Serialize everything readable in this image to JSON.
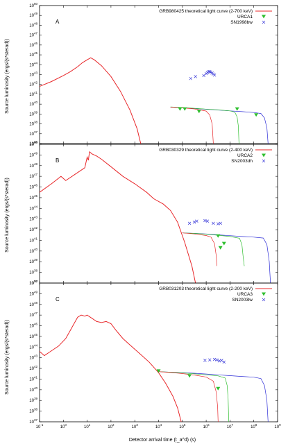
{
  "figure": {
    "xlabel": "Detector arrival time (t_a^d) (s)",
    "x_ticks": [
      "10^-1",
      "10^0",
      "10^1",
      "10^2",
      "10^3",
      "10^4",
      "10^5",
      "10^6",
      "10^7",
      "10^8",
      "10^9"
    ]
  },
  "colors": {
    "grb": "#e8272a",
    "urca_v1": "#2b2bd6",
    "urca_v2": "#2fbf2f",
    "marker_triangle": "#2fbf2f",
    "marker_cross": "#3b3bd9",
    "axis": "#000000"
  },
  "chart_data": [
    {
      "type": "line",
      "panel_letter": "A",
      "ylabel": "Source luminosity (ergs/(s*sterad))",
      "xlim_log10": [
        -1,
        9
      ],
      "ylim_log10": [
        36,
        50
      ],
      "y_ticks": [
        "10^36",
        "10^37",
        "10^38",
        "10^39",
        "10^40",
        "10^41",
        "10^42",
        "10^43",
        "10^44",
        "10^45",
        "10^46",
        "10^47",
        "10^48",
        "10^49",
        "10^50"
      ],
      "legend": {
        "grb": "GRB980425 theoretical light curve (2-700 keV)",
        "urca": "URCA1",
        "sn": "SN1998bw"
      },
      "series": [
        {
          "name": "GRB980425 theoretical light curve (2-700 keV)",
          "role": "grb",
          "points": [
            [
              -1,
              41.8
            ],
            [
              -0.5,
              42.3
            ],
            [
              0,
              42.9
            ],
            [
              0.3,
              43.3
            ],
            [
              0.6,
              43.8
            ],
            [
              0.8,
              44.2
            ],
            [
              1,
              44.5
            ],
            [
              1.15,
              44.7
            ],
            [
              1.3,
              44.5
            ],
            [
              1.6,
              43.9
            ],
            [
              2,
              42.8
            ],
            [
              2.4,
              41.3
            ],
            [
              2.8,
              39.4
            ],
            [
              3.1,
              37.5
            ],
            [
              3.25,
              36
            ]
          ]
        },
        {
          "role": "urca_blue",
          "points": [
            [
              4.5,
              39.7
            ],
            [
              5,
              39.64
            ],
            [
              5.5,
              39.56
            ],
            [
              6,
              39.48
            ],
            [
              6.5,
              39.4
            ],
            [
              7,
              39.32
            ],
            [
              7.5,
              39.24
            ],
            [
              8,
              39.15
            ],
            [
              8.3,
              39.05
            ],
            [
              8.45,
              38.6
            ],
            [
              8.55,
              37.6
            ],
            [
              8.6,
              36
            ]
          ]
        },
        {
          "role": "urca_green",
          "points": [
            [
              4.5,
              39.72
            ],
            [
              5,
              39.66
            ],
            [
              5.5,
              39.58
            ],
            [
              6,
              39.5
            ],
            [
              6.5,
              39.42
            ],
            [
              7,
              39.32
            ],
            [
              7.2,
              39.2
            ],
            [
              7.3,
              38.7
            ],
            [
              7.35,
              37.8
            ],
            [
              7.38,
              36
            ]
          ]
        },
        {
          "role": "urca_red",
          "points": [
            [
              4.5,
              39.7
            ],
            [
              5,
              39.62
            ],
            [
              5.5,
              39.52
            ],
            [
              6,
              39.3
            ],
            [
              6.15,
              38.9
            ],
            [
              6.25,
              38
            ],
            [
              6.3,
              36
            ]
          ]
        }
      ],
      "urca_markers": [
        [
          4.9,
          39.5
        ],
        [
          5.1,
          39.5
        ],
        [
          5.7,
          39.25
        ],
        [
          7.3,
          39.5
        ],
        [
          8.1,
          38.9
        ]
      ],
      "sn_markers": [
        [
          5.35,
          42.6
        ],
        [
          5.55,
          42.8
        ],
        [
          5.9,
          42.9
        ],
        [
          6.0,
          43.1
        ],
        [
          6.05,
          43.2
        ],
        [
          6.1,
          43.3
        ],
        [
          6.15,
          43.3
        ],
        [
          6.2,
          43.25
        ],
        [
          6.25,
          43.15
        ],
        [
          6.3,
          43.05
        ],
        [
          6.35,
          42.95
        ]
      ]
    },
    {
      "type": "line",
      "panel_letter": "B",
      "ylabel": "Source luminosity (ergs/(s*sterad))",
      "xlim_log10": [
        -1,
        9
      ],
      "ylim_log10": [
        37,
        50
      ],
      "y_ticks": [
        "10^37",
        "10^38",
        "10^39",
        "10^40",
        "10^41",
        "10^42",
        "10^43",
        "10^44",
        "10^45",
        "10^46",
        "10^47",
        "10^48",
        "10^49",
        "10^50"
      ],
      "legend": {
        "grb": "GRB030329 theoretical light curve (2-400 keV)",
        "urca": "URCA2",
        "sn": "SN2003dh"
      },
      "series": [
        {
          "name": "GRB030329 theoretical light curve (2-400 keV)",
          "role": "grb",
          "points": [
            [
              -1,
              45.5
            ],
            [
              -0.5,
              46.3
            ],
            [
              -0.1,
              47.0
            ],
            [
              0.1,
              46.6
            ],
            [
              0.5,
              47.2
            ],
            [
              0.9,
              47.8
            ],
            [
              1.0,
              48.8
            ],
            [
              1.05,
              48.5
            ],
            [
              1.1,
              49.3
            ],
            [
              1.2,
              49.1
            ],
            [
              1.4,
              48.9
            ],
            [
              1.6,
              48.6
            ],
            [
              2,
              47.9
            ],
            [
              2.5,
              47.0
            ],
            [
              3,
              46.3
            ],
            [
              3.5,
              45.5
            ],
            [
              3.8,
              44.9
            ],
            [
              4.2,
              44.4
            ],
            [
              4.5,
              43.8
            ],
            [
              4.8,
              42.7
            ],
            [
              5.1,
              40.8
            ],
            [
              5.4,
              38.6
            ],
            [
              5.55,
              37
            ]
          ]
        },
        {
          "role": "urca_blue",
          "points": [
            [
              5,
              41.7
            ],
            [
              5.5,
              41.66
            ],
            [
              6,
              41.6
            ],
            [
              6.5,
              41.52
            ],
            [
              7,
              41.44
            ],
            [
              7.5,
              41.36
            ],
            [
              8,
              41.3
            ],
            [
              8.4,
              41.22
            ],
            [
              8.55,
              40.6
            ],
            [
              8.65,
              39
            ],
            [
              8.7,
              37
            ]
          ]
        },
        {
          "role": "urca_green",
          "points": [
            [
              5,
              41.7
            ],
            [
              5.5,
              41.65
            ],
            [
              6,
              41.58
            ],
            [
              6.5,
              41.48
            ],
            [
              7,
              41.36
            ],
            [
              7.4,
              41.2
            ],
            [
              7.5,
              40.6
            ],
            [
              7.55,
              39.5
            ],
            [
              7.6,
              38.6
            ]
          ]
        },
        {
          "role": "urca_red",
          "points": [
            [
              5,
              41.7
            ],
            [
              5.5,
              41.6
            ],
            [
              6,
              41.45
            ],
            [
              6.2,
              41.3
            ],
            [
              6.35,
              40.7
            ],
            [
              6.42,
              39.6
            ],
            [
              6.45,
              38.6
            ]
          ]
        }
      ],
      "urca_markers": [
        [
          6.5,
          41.4
        ],
        [
          6.75,
          40.7
        ],
        [
          6.6,
          40.3
        ]
      ],
      "sn_markers": [
        [
          5.3,
          42.6
        ],
        [
          5.5,
          42.7
        ],
        [
          5.6,
          42.8
        ],
        [
          5.95,
          42.85
        ],
        [
          6.05,
          42.8
        ],
        [
          6.3,
          42.6
        ],
        [
          6.5,
          42.55
        ],
        [
          6.6,
          42.6
        ]
      ]
    },
    {
      "type": "line",
      "panel_letter": "C",
      "ylabel": "Source luminosity (ergs/(s*sterad))",
      "xlim_log10": [
        -1,
        9
      ],
      "ylim_log10": [
        37,
        50
      ],
      "y_ticks": [
        "10^37",
        "10^38",
        "10^39",
        "10^40",
        "10^41",
        "10^42",
        "10^43",
        "10^44",
        "10^45",
        "10^46",
        "10^47",
        "10^48",
        "10^49",
        "10^50"
      ],
      "legend": {
        "grb": "GRB031203 theoretical light curve (2-200 keV)",
        "urca": "URCA3",
        "sn": "SN2003lw"
      },
      "series": [
        {
          "name": "GRB031203 theoretical light curve (2-200 keV)",
          "role": "grb",
          "points": [
            [
              -1,
              43.6
            ],
            [
              -0.8,
              43.2
            ],
            [
              -0.6,
              43.5
            ],
            [
              -0.2,
              44.1
            ],
            [
              0.1,
              44.8
            ],
            [
              0.3,
              45.6
            ],
            [
              0.45,
              46.2
            ],
            [
              0.6,
              46.8
            ],
            [
              0.75,
              47.0
            ],
            [
              0.9,
              46.9
            ],
            [
              1.0,
              47.0
            ],
            [
              1.2,
              46.7
            ],
            [
              1.4,
              46.4
            ],
            [
              1.6,
              46.3
            ],
            [
              1.8,
              46.4
            ],
            [
              2.0,
              46.2
            ],
            [
              2.2,
              45.6
            ],
            [
              2.5,
              44.8
            ],
            [
              2.8,
              44.2
            ],
            [
              3.2,
              43.4
            ],
            [
              3.6,
              42.6
            ],
            [
              4.0,
              41.6
            ],
            [
              4.3,
              40.6
            ],
            [
              4.6,
              39.4
            ],
            [
              4.8,
              38.3
            ],
            [
              4.95,
              37
            ]
          ]
        },
        {
          "role": "urca_blue",
          "points": [
            [
              4,
              41.7
            ],
            [
              4.5,
              41.65
            ],
            [
              5,
              41.6
            ],
            [
              5.5,
              41.55
            ],
            [
              6,
              41.48
            ],
            [
              6.5,
              41.4
            ],
            [
              7,
              41.32
            ],
            [
              7.5,
              41.25
            ],
            [
              8,
              41.18
            ],
            [
              8.3,
              41.05
            ],
            [
              8.45,
              40.4
            ],
            [
              8.55,
              39
            ],
            [
              8.6,
              37
            ]
          ]
        },
        {
          "role": "urca_green",
          "points": [
            [
              4,
              41.7
            ],
            [
              4.5,
              41.65
            ],
            [
              5,
              41.58
            ],
            [
              5.5,
              41.5
            ],
            [
              6,
              41.4
            ],
            [
              6.5,
              41.3
            ],
            [
              6.8,
              41.1
            ],
            [
              6.88,
              40.4
            ],
            [
              6.92,
              39.2
            ],
            [
              6.95,
              37
            ]
          ]
        },
        {
          "role": "urca_red",
          "points": [
            [
              4,
              41.7
            ],
            [
              4.5,
              41.62
            ],
            [
              5,
              41.52
            ],
            [
              5.5,
              41.38
            ],
            [
              6,
              41.2
            ],
            [
              6.3,
              40.8
            ],
            [
              6.42,
              39.8
            ],
            [
              6.48,
              38.4
            ],
            [
              6.5,
              37
            ]
          ]
        }
      ],
      "urca_markers": [
        [
          4.0,
          41.75
        ],
        [
          5.3,
          41.3
        ],
        [
          6.5,
          40.1
        ]
      ],
      "sn_markers": [
        [
          5.95,
          42.75
        ],
        [
          6.15,
          42.8
        ],
        [
          6.35,
          42.85
        ],
        [
          6.45,
          42.8
        ],
        [
          6.55,
          42.7
        ],
        [
          6.65,
          42.75
        ],
        [
          6.75,
          42.6
        ]
      ]
    }
  ]
}
